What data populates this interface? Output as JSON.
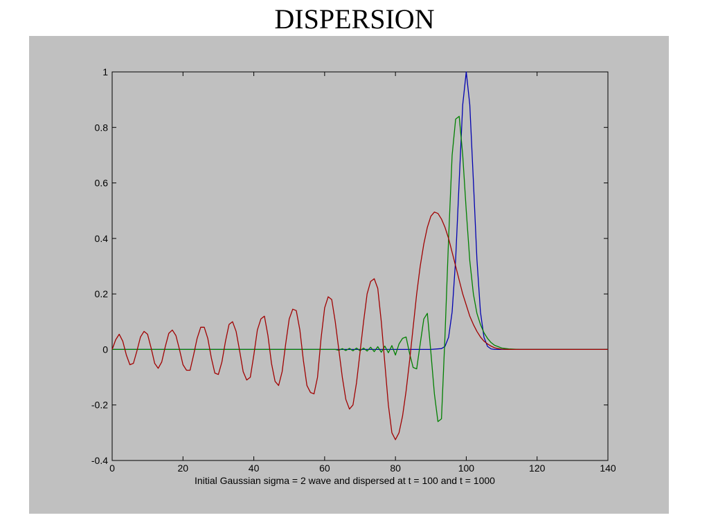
{
  "page": {
    "title": "DISPERSION"
  },
  "chart_data": {
    "type": "line",
    "title": "",
    "xlabel": "Initial Gaussian sigma = 2 wave and dispersed at t = 100 and t = 1000",
    "ylabel": "",
    "xlim": [
      0,
      140
    ],
    "ylim": [
      -0.4,
      1
    ],
    "xticks": [
      0,
      20,
      40,
      60,
      80,
      100,
      120,
      140
    ],
    "xtick_labels": [
      "0",
      "20",
      "40",
      "60",
      "80",
      "100",
      "120",
      "140"
    ],
    "yticks": [
      -0.4,
      -0.2,
      0,
      0.2,
      0.4,
      0.6,
      0.8,
      1
    ],
    "ytick_labels": [
      "-0.4",
      "-0.2",
      "0",
      "0.2",
      "0.4",
      "0.6",
      "0.8",
      "1"
    ],
    "grid": false,
    "series": [
      {
        "color": "#0000b0",
        "x": [
          0,
          10,
          20,
          30,
          40,
          50,
          60,
          70,
          80,
          90,
          93,
          94,
          95,
          96,
          97,
          98,
          99,
          100,
          101,
          102,
          103,
          104,
          105,
          106,
          107,
          108,
          110,
          120,
          140
        ],
        "y": [
          0,
          0,
          0,
          0,
          0,
          0,
          0,
          0,
          0,
          0,
          0.003,
          0.011,
          0.044,
          0.135,
          0.325,
          0.607,
          0.882,
          1.0,
          0.882,
          0.607,
          0.325,
          0.135,
          0.044,
          0.011,
          0.002,
          0,
          0,
          0,
          0
        ]
      },
      {
        "color": "#008000",
        "x": [
          0,
          10,
          20,
          30,
          40,
          50,
          60,
          63,
          64,
          65,
          66,
          67,
          68,
          69,
          70,
          71,
          72,
          73,
          74,
          75,
          76,
          77,
          78,
          79,
          80,
          81,
          82,
          83,
          84,
          85,
          86,
          87,
          88,
          89,
          90,
          91,
          92,
          93,
          94,
          95,
          96,
          97,
          98,
          99,
          100,
          101,
          102,
          103,
          104,
          105,
          106,
          107,
          108,
          109,
          110,
          112,
          115,
          120,
          140
        ],
        "y": [
          0,
          0,
          0,
          0,
          0,
          0,
          0,
          0,
          -0.003,
          0.003,
          -0.004,
          0.004,
          -0.005,
          0.005,
          -0.005,
          0.005,
          -0.006,
          0.008,
          -0.008,
          0.01,
          -0.01,
          0.012,
          -0.012,
          0.014,
          -0.02,
          0.02,
          0.04,
          0.045,
          -0.015,
          -0.065,
          -0.07,
          0.02,
          0.11,
          0.13,
          -0.01,
          -0.16,
          -0.26,
          -0.25,
          0.05,
          0.4,
          0.7,
          0.83,
          0.84,
          0.7,
          0.5,
          0.32,
          0.2,
          0.13,
          0.09,
          0.06,
          0.04,
          0.025,
          0.015,
          0.01,
          0.005,
          0.002,
          0,
          0,
          0
        ]
      },
      {
        "color": "#a00000",
        "x": [
          0,
          1,
          2,
          3,
          4,
          5,
          6,
          7,
          8,
          9,
          10,
          11,
          12,
          13,
          14,
          15,
          16,
          17,
          18,
          19,
          20,
          21,
          22,
          23,
          24,
          25,
          26,
          27,
          28,
          29,
          30,
          31,
          32,
          33,
          34,
          35,
          36,
          37,
          38,
          39,
          40,
          41,
          42,
          43,
          44,
          45,
          46,
          47,
          48,
          49,
          50,
          51,
          52,
          53,
          54,
          55,
          56,
          57,
          58,
          59,
          60,
          61,
          62,
          63,
          64,
          65,
          66,
          67,
          68,
          69,
          70,
          71,
          72,
          73,
          74,
          75,
          76,
          77,
          78,
          79,
          80,
          81,
          82,
          83,
          84,
          85,
          86,
          87,
          88,
          89,
          90,
          91,
          92,
          93,
          94,
          95,
          96,
          97,
          98,
          99,
          100,
          101,
          102,
          103,
          104,
          105,
          106,
          107,
          108,
          109,
          110,
          112,
          114,
          116,
          118,
          120,
          125,
          130,
          140
        ],
        "y": [
          0,
          0.035,
          0.055,
          0.03,
          -0.02,
          -0.055,
          -0.05,
          -0.005,
          0.045,
          0.065,
          0.055,
          0.005,
          -0.05,
          -0.068,
          -0.045,
          0.01,
          0.058,
          0.07,
          0.05,
          0.0,
          -0.055,
          -0.075,
          -0.075,
          -0.02,
          0.04,
          0.08,
          0.08,
          0.04,
          -0.03,
          -0.085,
          -0.09,
          -0.045,
          0.03,
          0.09,
          0.1,
          0.065,
          -0.005,
          -0.08,
          -0.11,
          -0.1,
          -0.02,
          0.07,
          0.11,
          0.12,
          0.05,
          -0.05,
          -0.115,
          -0.13,
          -0.08,
          0.02,
          0.11,
          0.145,
          0.14,
          0.07,
          -0.04,
          -0.13,
          -0.155,
          -0.16,
          -0.1,
          0.04,
          0.15,
          0.19,
          0.18,
          0.1,
          0.0,
          -0.1,
          -0.18,
          -0.215,
          -0.2,
          -0.12,
          -0.01,
          0.1,
          0.2,
          0.245,
          0.255,
          0.22,
          0.1,
          -0.05,
          -0.2,
          -0.3,
          -0.325,
          -0.3,
          -0.24,
          -0.15,
          -0.04,
          0.08,
          0.2,
          0.3,
          0.38,
          0.44,
          0.48,
          0.495,
          0.49,
          0.47,
          0.44,
          0.4,
          0.35,
          0.3,
          0.25,
          0.2,
          0.16,
          0.12,
          0.09,
          0.065,
          0.045,
          0.03,
          0.02,
          0.012,
          0.006,
          0.003,
          0.001,
          0,
          0,
          0,
          0,
          0,
          0,
          0,
          0
        ]
      }
    ]
  }
}
